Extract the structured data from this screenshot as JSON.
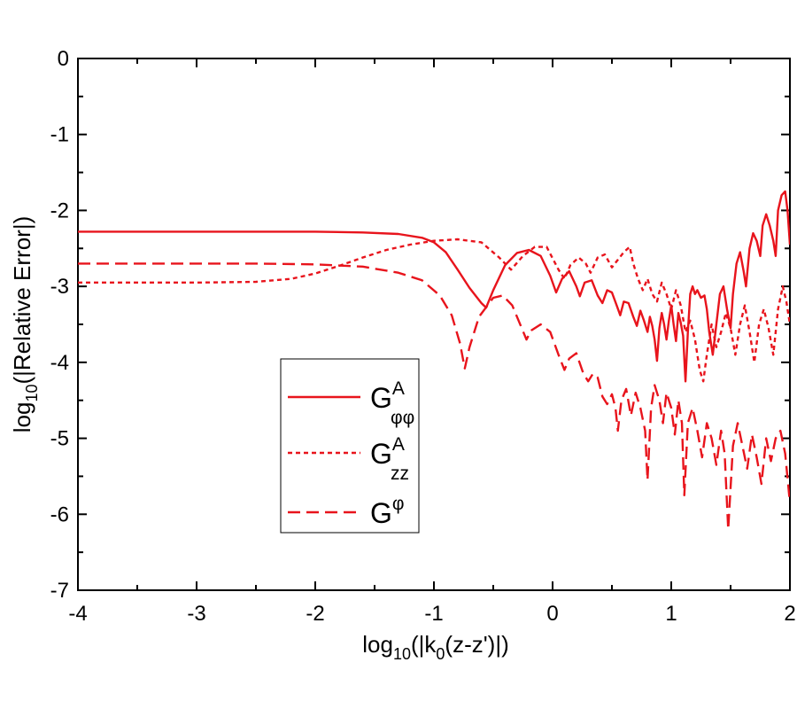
{
  "chart_data": {
    "type": "line",
    "xlabel": {
      "base": "log",
      "sub": "10",
      "rest": "(|k",
      "sub2": "0",
      "tail": "(z-z')|)"
    },
    "ylabel": {
      "base": "log",
      "sub": "10",
      "rest": "(|Relative Error|)"
    },
    "xlim": [
      -4,
      2
    ],
    "ylim": [
      -7,
      0
    ],
    "xticks": [
      -4,
      -3,
      -2,
      -1,
      0,
      1,
      2
    ],
    "yticks": [
      0,
      -1,
      -2,
      -3,
      -4,
      -5,
      -6,
      -7
    ],
    "xtick_labels": [
      "-4",
      "-3",
      "-2",
      "-1",
      "0",
      "1",
      "2"
    ],
    "ytick_labels": [
      "0",
      "-1",
      "-2",
      "-3",
      "-4",
      "-5",
      "-6",
      "-7"
    ],
    "legend_position": "lower-center",
    "line_color": "#e8141c",
    "series": [
      {
        "name": "G_φφ^A",
        "legend": {
          "base": "G",
          "sup": "A",
          "sub": "φφ"
        },
        "dash": "solid",
        "points": [
          [
            -4,
            -2.28
          ],
          [
            -3,
            -2.28
          ],
          [
            -2.5,
            -2.28
          ],
          [
            -2,
            -2.28
          ],
          [
            -1.6,
            -2.29
          ],
          [
            -1.3,
            -2.31
          ],
          [
            -1.1,
            -2.36
          ],
          [
            -1.0,
            -2.42
          ],
          [
            -0.9,
            -2.55
          ],
          [
            -0.8,
            -2.78
          ],
          [
            -0.7,
            -3.02
          ],
          [
            -0.6,
            -3.22
          ],
          [
            -0.56,
            -3.28
          ],
          [
            -0.5,
            -3.05
          ],
          [
            -0.4,
            -2.72
          ],
          [
            -0.3,
            -2.56
          ],
          [
            -0.2,
            -2.52
          ],
          [
            -0.1,
            -2.6
          ],
          [
            -0.02,
            -2.86
          ],
          [
            0.03,
            -3.08
          ],
          [
            0.08,
            -2.9
          ],
          [
            0.14,
            -2.8
          ],
          [
            0.2,
            -3.0
          ],
          [
            0.23,
            -3.13
          ],
          [
            0.27,
            -2.95
          ],
          [
            0.33,
            -2.92
          ],
          [
            0.38,
            -3.12
          ],
          [
            0.42,
            -3.22
          ],
          [
            0.46,
            -3.05
          ],
          [
            0.5,
            -3.08
          ],
          [
            0.54,
            -3.25
          ],
          [
            0.57,
            -3.38
          ],
          [
            0.6,
            -3.2
          ],
          [
            0.64,
            -3.22
          ],
          [
            0.68,
            -3.4
          ],
          [
            0.71,
            -3.52
          ],
          [
            0.74,
            -3.32
          ],
          [
            0.77,
            -3.45
          ],
          [
            0.8,
            -3.6
          ],
          [
            0.82,
            -3.4
          ],
          [
            0.84,
            -3.52
          ],
          [
            0.86,
            -3.7
          ],
          [
            0.88,
            -3.98
          ],
          [
            0.9,
            -3.55
          ],
          [
            0.92,
            -3.35
          ],
          [
            0.94,
            -3.5
          ],
          [
            0.96,
            -3.7
          ],
          [
            0.98,
            -3.45
          ],
          [
            1.0,
            -3.25
          ],
          [
            1.02,
            -3.5
          ],
          [
            1.04,
            -3.72
          ],
          [
            1.06,
            -3.35
          ],
          [
            1.08,
            -3.48
          ],
          [
            1.1,
            -3.65
          ],
          [
            1.12,
            -4.25
          ],
          [
            1.14,
            -3.6
          ],
          [
            1.16,
            -3.1
          ],
          [
            1.18,
            -3.0
          ],
          [
            1.2,
            -3.1
          ],
          [
            1.22,
            -3.05
          ],
          [
            1.25,
            -3.15
          ],
          [
            1.28,
            -3.12
          ],
          [
            1.3,
            -3.3
          ],
          [
            1.32,
            -3.6
          ],
          [
            1.35,
            -3.9
          ],
          [
            1.38,
            -3.5
          ],
          [
            1.41,
            -3.1
          ],
          [
            1.44,
            -3.0
          ],
          [
            1.47,
            -3.3
          ],
          [
            1.5,
            -3.55
          ],
          [
            1.52,
            -3.1
          ],
          [
            1.55,
            -2.7
          ],
          [
            1.58,
            -2.55
          ],
          [
            1.61,
            -2.8
          ],
          [
            1.63,
            -3.0
          ],
          [
            1.66,
            -2.5
          ],
          [
            1.69,
            -2.3
          ],
          [
            1.72,
            -2.4
          ],
          [
            1.75,
            -2.6
          ],
          [
            1.77,
            -2.2
          ],
          [
            1.8,
            -2.05
          ],
          [
            1.83,
            -2.2
          ],
          [
            1.86,
            -2.4
          ],
          [
            1.88,
            -2.6
          ],
          [
            1.9,
            -2.0
          ],
          [
            1.93,
            -1.8
          ],
          [
            1.96,
            -1.75
          ],
          [
            1.98,
            -2.0
          ],
          [
            2.0,
            -2.45
          ]
        ]
      },
      {
        "name": "G_zz^A",
        "legend": {
          "base": "G",
          "sup": "A",
          "sub": "zz"
        },
        "dash": "dotted",
        "points": [
          [
            -4,
            -2.95
          ],
          [
            -3,
            -2.95
          ],
          [
            -2.5,
            -2.94
          ],
          [
            -2.2,
            -2.9
          ],
          [
            -2,
            -2.83
          ],
          [
            -1.8,
            -2.73
          ],
          [
            -1.6,
            -2.62
          ],
          [
            -1.4,
            -2.52
          ],
          [
            -1.2,
            -2.45
          ],
          [
            -1.0,
            -2.4
          ],
          [
            -0.8,
            -2.38
          ],
          [
            -0.6,
            -2.42
          ],
          [
            -0.45,
            -2.62
          ],
          [
            -0.35,
            -2.78
          ],
          [
            -0.25,
            -2.6
          ],
          [
            -0.15,
            -2.48
          ],
          [
            -0.05,
            -2.48
          ],
          [
            0.05,
            -2.78
          ],
          [
            0.1,
            -2.9
          ],
          [
            0.15,
            -2.72
          ],
          [
            0.22,
            -2.62
          ],
          [
            0.28,
            -2.7
          ],
          [
            0.32,
            -2.82
          ],
          [
            0.38,
            -2.62
          ],
          [
            0.44,
            -2.58
          ],
          [
            0.5,
            -2.75
          ],
          [
            0.55,
            -2.65
          ],
          [
            0.6,
            -2.55
          ],
          [
            0.65,
            -2.48
          ],
          [
            0.68,
            -2.7
          ],
          [
            0.72,
            -2.9
          ],
          [
            0.76,
            -3.05
          ],
          [
            0.8,
            -2.9
          ],
          [
            0.84,
            -3.1
          ],
          [
            0.88,
            -3.2
          ],
          [
            0.92,
            -2.95
          ],
          [
            0.96,
            -3.1
          ],
          [
            1.0,
            -3.3
          ],
          [
            1.04,
            -3.05
          ],
          [
            1.08,
            -3.25
          ],
          [
            1.12,
            -3.6
          ],
          [
            1.16,
            -3.45
          ],
          [
            1.2,
            -3.7
          ],
          [
            1.24,
            -4.1
          ],
          [
            1.27,
            -4.25
          ],
          [
            1.3,
            -3.9
          ],
          [
            1.34,
            -3.5
          ],
          [
            1.38,
            -3.8
          ],
          [
            1.42,
            -3.6
          ],
          [
            1.46,
            -3.35
          ],
          [
            1.5,
            -3.55
          ],
          [
            1.54,
            -3.9
          ],
          [
            1.58,
            -3.5
          ],
          [
            1.62,
            -3.25
          ],
          [
            1.66,
            -3.6
          ],
          [
            1.7,
            -4.0
          ],
          [
            1.74,
            -3.5
          ],
          [
            1.78,
            -3.3
          ],
          [
            1.82,
            -3.55
          ],
          [
            1.86,
            -3.9
          ],
          [
            1.9,
            -3.3
          ],
          [
            1.94,
            -3.0
          ],
          [
            1.97,
            -3.2
          ],
          [
            2.0,
            -3.5
          ]
        ]
      },
      {
        "name": "G^φ",
        "legend": {
          "base": "G",
          "sup": "φ",
          "sub": ""
        },
        "dash": "dashed",
        "points": [
          [
            -4,
            -2.7
          ],
          [
            -3,
            -2.7
          ],
          [
            -2.5,
            -2.7
          ],
          [
            -2,
            -2.71
          ],
          [
            -1.6,
            -2.74
          ],
          [
            -1.3,
            -2.82
          ],
          [
            -1.1,
            -2.92
          ],
          [
            -0.95,
            -3.12
          ],
          [
            -0.85,
            -3.38
          ],
          [
            -0.78,
            -3.75
          ],
          [
            -0.74,
            -4.08
          ],
          [
            -0.7,
            -3.8
          ],
          [
            -0.62,
            -3.4
          ],
          [
            -0.5,
            -3.15
          ],
          [
            -0.42,
            -3.12
          ],
          [
            -0.34,
            -3.25
          ],
          [
            -0.26,
            -3.55
          ],
          [
            -0.22,
            -3.7
          ],
          [
            -0.18,
            -3.58
          ],
          [
            -0.1,
            -3.5
          ],
          [
            -0.02,
            -3.6
          ],
          [
            0.05,
            -3.9
          ],
          [
            0.1,
            -4.1
          ],
          [
            0.14,
            -3.95
          ],
          [
            0.2,
            -3.88
          ],
          [
            0.26,
            -4.15
          ],
          [
            0.3,
            -4.25
          ],
          [
            0.34,
            -4.15
          ],
          [
            0.38,
            -4.2
          ],
          [
            0.42,
            -4.45
          ],
          [
            0.46,
            -4.55
          ],
          [
            0.5,
            -4.42
          ],
          [
            0.53,
            -4.6
          ],
          [
            0.55,
            -4.9
          ],
          [
            0.58,
            -4.5
          ],
          [
            0.62,
            -4.35
          ],
          [
            0.66,
            -4.7
          ],
          [
            0.7,
            -4.4
          ],
          [
            0.74,
            -4.6
          ],
          [
            0.78,
            -4.9
          ],
          [
            0.8,
            -5.55
          ],
          [
            0.83,
            -4.6
          ],
          [
            0.86,
            -4.3
          ],
          [
            0.9,
            -4.5
          ],
          [
            0.93,
            -4.8
          ],
          [
            0.96,
            -4.4
          ],
          [
            1.0,
            -4.6
          ],
          [
            1.03,
            -4.95
          ],
          [
            1.06,
            -4.5
          ],
          [
            1.09,
            -4.8
          ],
          [
            1.11,
            -5.75
          ],
          [
            1.14,
            -4.8
          ],
          [
            1.18,
            -4.6
          ],
          [
            1.22,
            -4.9
          ],
          [
            1.26,
            -5.25
          ],
          [
            1.3,
            -4.8
          ],
          [
            1.34,
            -5.0
          ],
          [
            1.38,
            -5.35
          ],
          [
            1.42,
            -4.9
          ],
          [
            1.45,
            -5.2
          ],
          [
            1.48,
            -6.2
          ],
          [
            1.52,
            -5.1
          ],
          [
            1.56,
            -4.8
          ],
          [
            1.6,
            -5.1
          ],
          [
            1.64,
            -5.4
          ],
          [
            1.68,
            -4.95
          ],
          [
            1.72,
            -5.25
          ],
          [
            1.76,
            -5.6
          ],
          [
            1.8,
            -5.0
          ],
          [
            1.84,
            -5.3
          ],
          [
            1.88,
            -5.0
          ],
          [
            1.92,
            -4.9
          ],
          [
            1.96,
            -5.2
          ],
          [
            2.0,
            -5.85
          ]
        ]
      }
    ]
  }
}
